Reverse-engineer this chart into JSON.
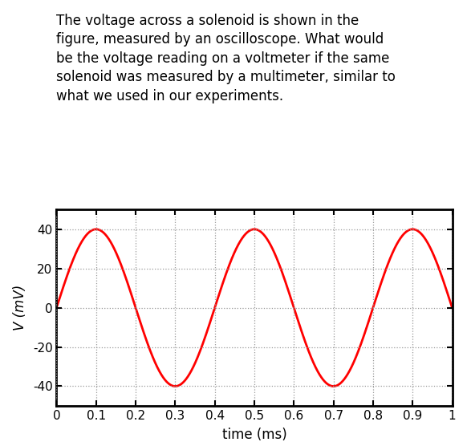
{
  "title_text": "The voltage across a solenoid is shown in the\nfigure, measured by an oscilloscope. What would\nbe the voltage reading on a voltmeter if the same\nsolenoid was measured by a multimeter, similar to\nwhat we used in our experiments.",
  "xlabel": "time (ms)",
  "ylabel": "V (mV)",
  "xlim": [
    0,
    1
  ],
  "ylim": [
    -50,
    50
  ],
  "xticks": [
    0,
    0.1,
    0.2,
    0.3,
    0.4,
    0.5,
    0.6,
    0.7,
    0.8,
    0.9,
    1
  ],
  "yticks": [
    -40,
    -20,
    0,
    20,
    40
  ],
  "amplitude": 40,
  "frequency_hz": 2.5,
  "line_color": "#ff0000",
  "line_width": 2.0,
  "grid_color": "#999999",
  "grid_style": ":",
  "grid_alpha": 1.0,
  "background_color": "#ffffff",
  "title_fontsize": 12,
  "axis_label_fontsize": 12,
  "tick_fontsize": 11,
  "tick_color": "#000000",
  "spine_color": "#000000",
  "fig_width": 5.87,
  "fig_height": 5.56,
  "dpi": 100
}
